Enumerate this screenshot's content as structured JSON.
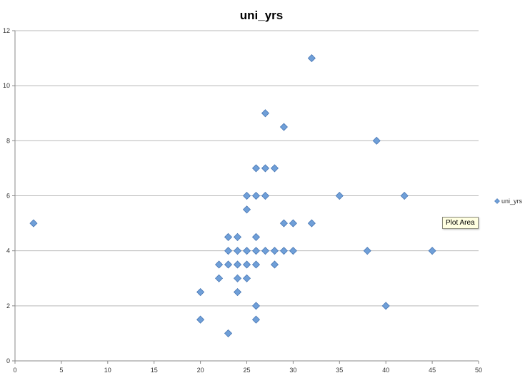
{
  "chart_data": {
    "type": "scatter",
    "title": "uni_yrs",
    "xlim": [
      0,
      50
    ],
    "ylim": [
      0,
      12
    ],
    "x_ticks": [
      0,
      5,
      10,
      15,
      20,
      25,
      30,
      35,
      40,
      45,
      50
    ],
    "y_ticks": [
      0,
      2,
      4,
      6,
      8,
      10,
      12
    ],
    "grid": "horizontal",
    "legend_position": "right",
    "series": [
      {
        "name": "uni_yrs",
        "color": "#6f9fd8",
        "points": [
          [
            2,
            5
          ],
          [
            20,
            2.5
          ],
          [
            20,
            1.5
          ],
          [
            22,
            3.5
          ],
          [
            22,
            3
          ],
          [
            23,
            4.5
          ],
          [
            23,
            4
          ],
          [
            23,
            3.5
          ],
          [
            23,
            1
          ],
          [
            24,
            4.5
          ],
          [
            24,
            4
          ],
          [
            24,
            3.5
          ],
          [
            24,
            3
          ],
          [
            24,
            2.5
          ],
          [
            25,
            6
          ],
          [
            25,
            5.5
          ],
          [
            25,
            4
          ],
          [
            25,
            3.5
          ],
          [
            25,
            3
          ],
          [
            26,
            7
          ],
          [
            26,
            6
          ],
          [
            26,
            4.5
          ],
          [
            26,
            4
          ],
          [
            26,
            3.5
          ],
          [
            26,
            2
          ],
          [
            26,
            1.5
          ],
          [
            27,
            9
          ],
          [
            27,
            7
          ],
          [
            27,
            6
          ],
          [
            27,
            4
          ],
          [
            28,
            7
          ],
          [
            28,
            4
          ],
          [
            28,
            3.5
          ],
          [
            29,
            8.5
          ],
          [
            29,
            5
          ],
          [
            29,
            4
          ],
          [
            30,
            5
          ],
          [
            30,
            4
          ],
          [
            32,
            11
          ],
          [
            32,
            5
          ],
          [
            35,
            6
          ],
          [
            38,
            4
          ],
          [
            39,
            8
          ],
          [
            40,
            2
          ],
          [
            42,
            6
          ],
          [
            45,
            4
          ]
        ]
      }
    ]
  },
  "tooltip": {
    "label": "Plot Area"
  }
}
